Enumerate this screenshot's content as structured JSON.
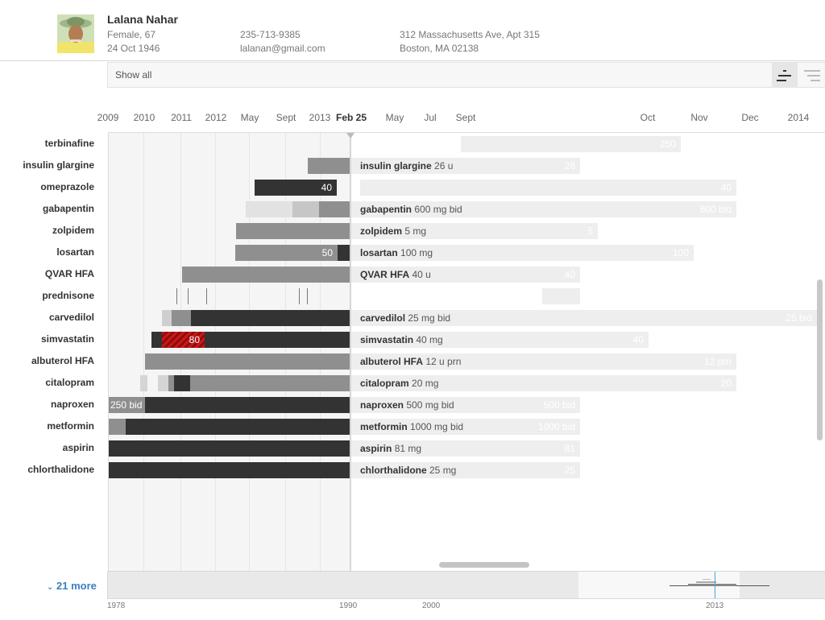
{
  "patient": {
    "name": "Lalana Nahar",
    "sex_age": "Female, 67",
    "dob": "24 Oct 1946",
    "phone": "235-713-9385",
    "email": "lalanan@gmail.com",
    "address1": "312 Massachusetts Ave, Apt 315",
    "address2": "Boston, MA 02138"
  },
  "filter": {
    "show_all": "Show all"
  },
  "axis": {
    "ticks": [
      "2009",
      "2010",
      "2011",
      "2012",
      "May",
      "Sept",
      "2013",
      "Feb 25",
      "May",
      "Jul",
      "Sept",
      "Oct",
      "Nov",
      "Dec",
      "2014"
    ]
  },
  "rows": [
    {
      "name": "terbinafine",
      "drug": "",
      "dose": "",
      "ghost": "250"
    },
    {
      "name": "insulin glargine",
      "drug": "insulin glargine",
      "dose": " 26 u",
      "ghost": "26"
    },
    {
      "name": "omeprazole",
      "drug": "",
      "dose": "",
      "ghost": "40",
      "past_label": "40"
    },
    {
      "name": "gabapentin",
      "drug": "gabapentin",
      "dose": " 600 mg bid",
      "ghost": "600 bid"
    },
    {
      "name": "zolpidem",
      "drug": "zolpidem",
      "dose": " 5 mg",
      "ghost": "5"
    },
    {
      "name": "losartan",
      "drug": "losartan",
      "dose": "  100 mg",
      "ghost": "100",
      "past_label": "50"
    },
    {
      "name": "QVAR HFA",
      "drug": "QVAR HFA",
      "dose": " 40 u",
      "ghost": "40"
    },
    {
      "name": "prednisone",
      "drug": "",
      "dose": "",
      "ghost": ""
    },
    {
      "name": "carvedilol",
      "drug": "carvedilol",
      "dose": " 25 mg bid",
      "ghost": "25 bid"
    },
    {
      "name": "simvastatin",
      "drug": "simvastatin",
      "dose": " 40 mg",
      "ghost": "40",
      "past_label": "80"
    },
    {
      "name": "albuterol HFA",
      "drug": "albuterol HFA",
      "dose": "  12 u prn",
      "ghost": "12 prn"
    },
    {
      "name": "citalopram",
      "drug": "citalopram",
      "dose": " 20 mg",
      "ghost": "20"
    },
    {
      "name": "naproxen",
      "drug": "naproxen",
      "dose": " 500 mg bid",
      "ghost": "500 bid",
      "past_label": "250 bid"
    },
    {
      "name": "metformin",
      "drug": "metformin",
      "dose": " 1000 mg bid",
      "ghost": "1000 bid"
    },
    {
      "name": "aspirin",
      "drug": "aspirin",
      "dose": " 81 mg",
      "ghost": "81"
    },
    {
      "name": "chlorthalidone",
      "drug": "chlorthalidone",
      "dose": " 25 mg",
      "ghost": "25"
    }
  ],
  "more": {
    "label": "21 more"
  },
  "overview": {
    "labels": [
      "1978",
      "1990",
      "2000",
      "2013"
    ]
  },
  "colors": {
    "dark": "#333333",
    "mid": "#8f8f8f",
    "light": "#d5d5d5",
    "highlight": "#c81818",
    "link": "#3a7fc1"
  }
}
